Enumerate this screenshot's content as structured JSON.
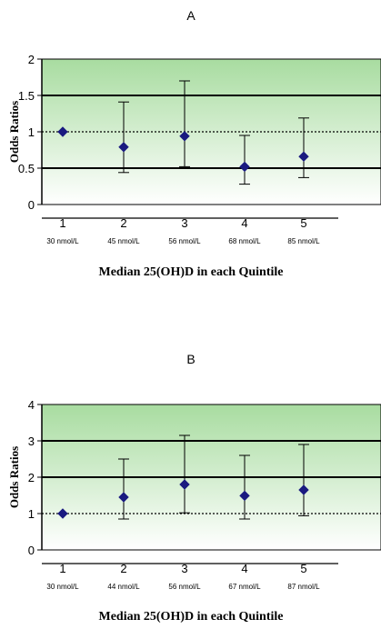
{
  "chart_data": [
    {
      "type": "scatter",
      "panel": "A",
      "ylabel": "Odds Ratios",
      "xlabel": "Median 25(OH)D in each Quintile",
      "ylim": [
        0,
        2
      ],
      "yticks": [
        "0",
        "0.5",
        "1",
        "1.5",
        "2"
      ],
      "solid_gridlines": [
        0.5,
        1.5
      ],
      "dotted_reference": 1,
      "categories": [
        "1",
        "2",
        "3",
        "4",
        "5"
      ],
      "category_sublabels": [
        "30 nmol/L",
        "45 nmol/L",
        "56 nmol/L",
        "68 nmol/L",
        "85 nmol/L"
      ],
      "values": [
        1.0,
        0.79,
        0.94,
        0.52,
        0.66
      ],
      "error_low": [
        null,
        0.44,
        0.52,
        0.28,
        0.37
      ],
      "error_high": [
        null,
        1.41,
        1.7,
        0.95,
        1.19
      ],
      "marker_color": "#1a1a80",
      "background_gradient": [
        "#ffffff",
        "#a8dca0"
      ]
    },
    {
      "type": "scatter",
      "panel": "B",
      "ylabel": "Odds Ratios",
      "xlabel": "Median 25(OH)D in each Quintile",
      "ylim": [
        0,
        4
      ],
      "yticks": [
        "0",
        "1",
        "2",
        "3",
        "4"
      ],
      "solid_gridlines": [
        2,
        3
      ],
      "dotted_reference": 1,
      "categories": [
        "1",
        "2",
        "3",
        "4",
        "5"
      ],
      "category_sublabels": [
        "30 nmol/L",
        "44 nmol/L",
        "56 nmol/L",
        "67 nmol/L",
        "87 nmol/L"
      ],
      "values": [
        1.0,
        1.45,
        1.8,
        1.49,
        1.65
      ],
      "error_low": [
        null,
        0.85,
        1.02,
        0.85,
        0.94
      ],
      "error_high": [
        null,
        2.5,
        3.15,
        2.6,
        2.9
      ],
      "marker_color": "#1a1a80",
      "background_gradient": [
        "#ffffff",
        "#a8dca0"
      ]
    }
  ]
}
